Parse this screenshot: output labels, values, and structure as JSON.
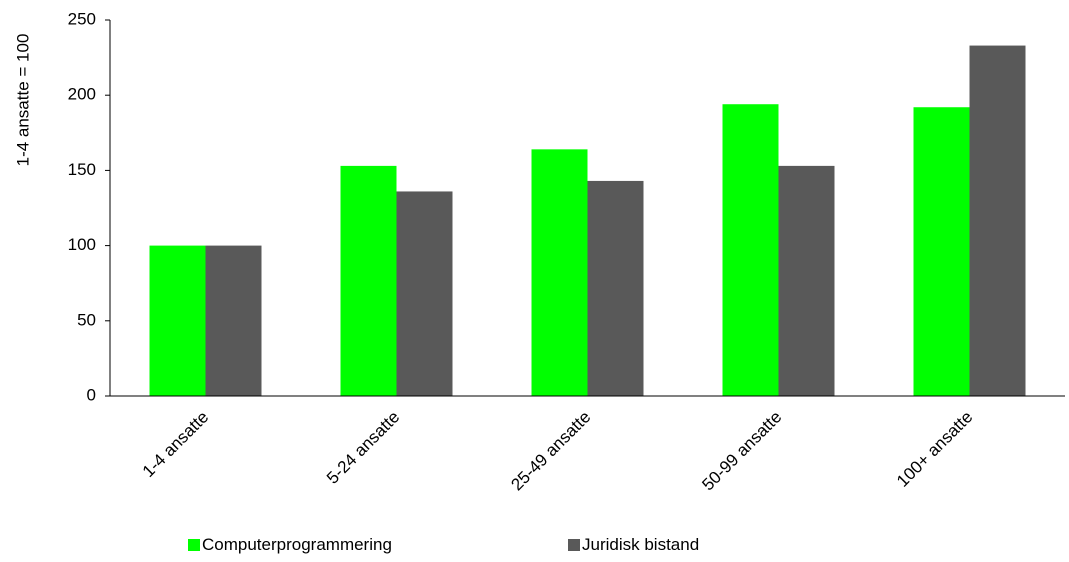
{
  "chart_data": {
    "type": "bar",
    "title": "",
    "xlabel": "",
    "ylabel": "1-4 ansatte = 100",
    "ylim": [
      0,
      250
    ],
    "yticks": [
      0,
      50,
      100,
      150,
      200,
      250
    ],
    "grid": false,
    "legend_position": "bottom",
    "categories": [
      "1-4 ansatte",
      "5-24 ansatte",
      "25-49 ansatte",
      "50-99 ansatte",
      "100+ ansatte"
    ],
    "series": [
      {
        "name": "Computerprogrammering",
        "color": "#00ff00",
        "values": [
          100,
          153,
          164,
          194,
          192
        ]
      },
      {
        "name": "Juridisk bistand",
        "color": "#595959",
        "values": [
          100,
          136,
          143,
          153,
          233
        ]
      }
    ]
  }
}
